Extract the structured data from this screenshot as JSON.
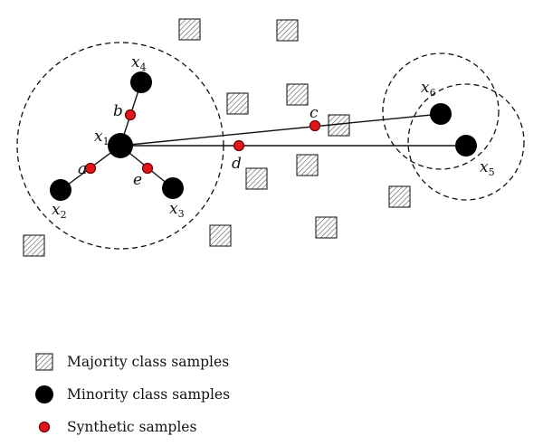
{
  "diagram": {
    "points": [
      {
        "id": "x1",
        "base": "x",
        "sub": "1"
      },
      {
        "id": "x2",
        "base": "x",
        "sub": "2"
      },
      {
        "id": "x3",
        "base": "x",
        "sub": "3"
      },
      {
        "id": "x4",
        "base": "x",
        "sub": "4"
      },
      {
        "id": "x5",
        "base": "x",
        "sub": "5"
      },
      {
        "id": "x6",
        "base": "x",
        "sub": "6"
      }
    ],
    "synthetic": [
      "a",
      "b",
      "c",
      "d",
      "e"
    ],
    "colors": {
      "minority": "#000000",
      "synthetic_fill": "#e0161b",
      "synthetic_stroke": "#6b0000",
      "majority_stroke": "#333333"
    }
  },
  "legend": {
    "majority": "Majority class samples",
    "minority": "Minority class samples",
    "synthetic": "Synthetic samples"
  }
}
